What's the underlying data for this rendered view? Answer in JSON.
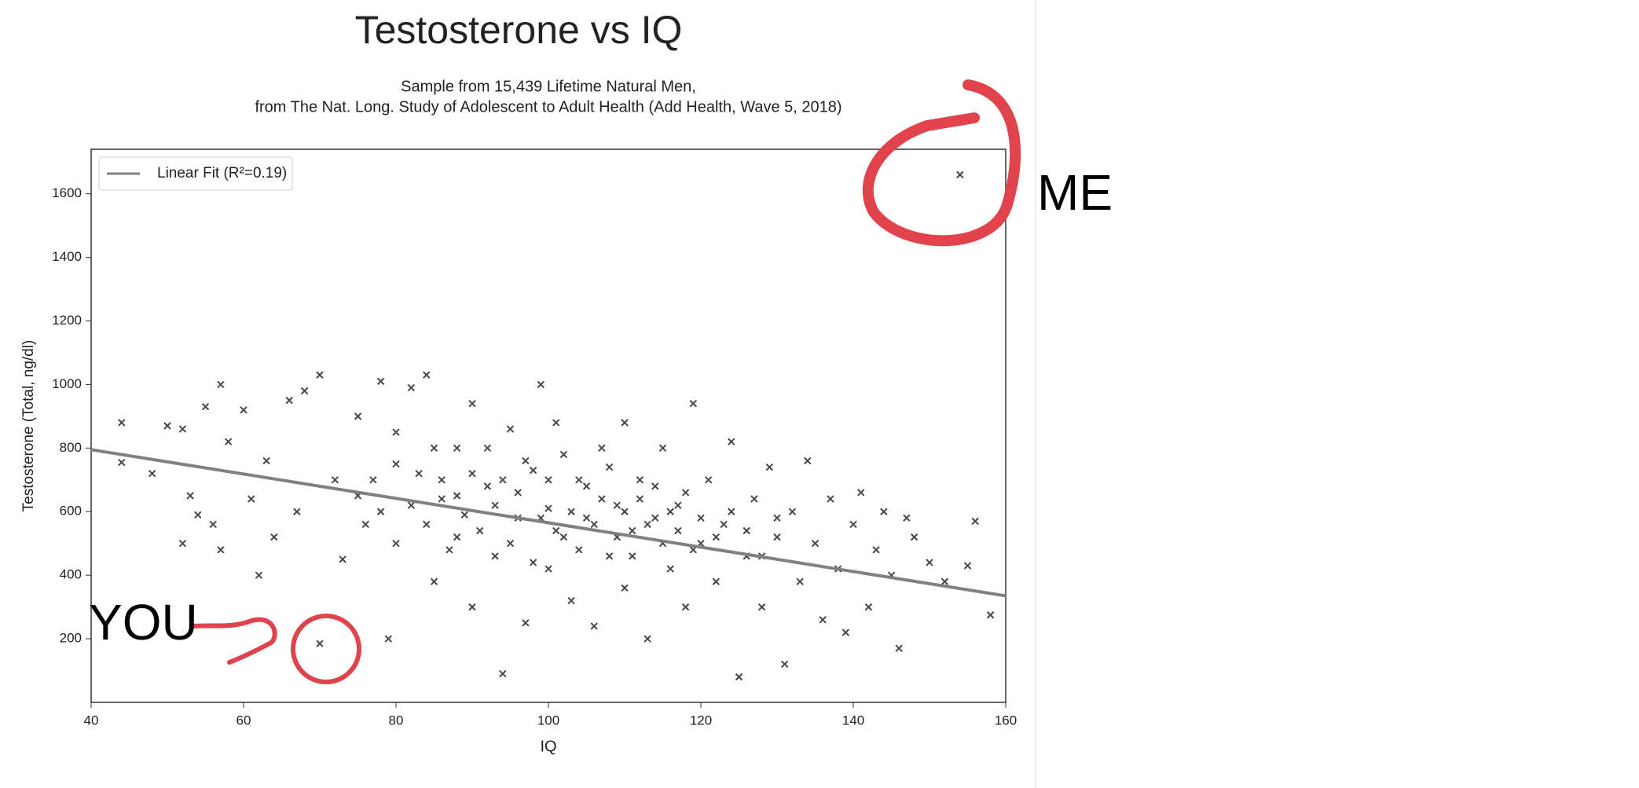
{
  "chart_data": {
    "type": "scatter",
    "title": "Testosterone vs IQ",
    "subtitle": [
      "Sample from 15,439 Lifetime Natural Men,",
      "from The Nat. Long. Study of Adolescent to Adult Health (Add Health, Wave 5, 2018)"
    ],
    "xlabel": "IQ",
    "ylabel": "Testosterone (Total, ng/dl)",
    "xlim": [
      40,
      160
    ],
    "ylim": [
      0,
      1740
    ],
    "xticks": [
      40,
      60,
      80,
      100,
      120,
      140,
      160
    ],
    "yticks": [
      200,
      400,
      600,
      800,
      1000,
      1200,
      1400,
      1600
    ],
    "marker_color": "#1a1a1a",
    "x": [
      44,
      44,
      48,
      50,
      52,
      52,
      53,
      54,
      55,
      56,
      57,
      57,
      58,
      60,
      61,
      62,
      63,
      64,
      66,
      67,
      68,
      70,
      70,
      72,
      73,
      75,
      76,
      78,
      79,
      80,
      82,
      83,
      84,
      85,
      86,
      88,
      88,
      90,
      90,
      92,
      93,
      94,
      95,
      96,
      97,
      98,
      99,
      100,
      100,
      101,
      102,
      103,
      104,
      105,
      106,
      107,
      108,
      109,
      110,
      110,
      111,
      112,
      113,
      114,
      115,
      116,
      117,
      118,
      119,
      120,
      121,
      122,
      123,
      124,
      125,
      126,
      127,
      128,
      129,
      130,
      131,
      132,
      133,
      134,
      135,
      136,
      137,
      138,
      139,
      140,
      141,
      142,
      143,
      144,
      145,
      146,
      147,
      148,
      150,
      152,
      154,
      155,
      156,
      158,
      75,
      77,
      78,
      80,
      80,
      82,
      84,
      85,
      86,
      87,
      88,
      89,
      90,
      91,
      92,
      93,
      94,
      95,
      96,
      97,
      98,
      99,
      100,
      101,
      102,
      103,
      104,
      105,
      106,
      107,
      108,
      109,
      110,
      111,
      112,
      113,
      114,
      115,
      116,
      117,
      118,
      119,
      120,
      122,
      124,
      126,
      128,
      130
    ],
    "values": [
      880,
      755,
      720,
      870,
      860,
      500,
      650,
      590,
      930,
      560,
      1000,
      480,
      820,
      920,
      640,
      400,
      760,
      520,
      950,
      600,
      980,
      1030,
      185,
      700,
      450,
      900,
      560,
      1010,
      200,
      850,
      990,
      720,
      1030,
      380,
      640,
      800,
      520,
      940,
      300,
      680,
      460,
      90,
      860,
      580,
      250,
      730,
      1000,
      610,
      420,
      880,
      520,
      320,
      700,
      580,
      240,
      800,
      460,
      620,
      880,
      360,
      540,
      700,
      200,
      580,
      800,
      420,
      620,
      300,
      940,
      500,
      700,
      380,
      560,
      820,
      80,
      460,
      640,
      300,
      740,
      520,
      120,
      600,
      380,
      760,
      500,
      260,
      640,
      420,
      220,
      560,
      660,
      300,
      480,
      600,
      400,
      170,
      580,
      520,
      440,
      380,
      1660,
      430,
      570,
      275,
      650,
      700,
      600,
      750,
      500,
      620,
      560,
      800,
      700,
      480,
      650,
      590,
      720,
      540,
      800,
      620,
      700,
      500,
      660,
      760,
      440,
      580,
      700,
      540,
      780,
      600,
      480,
      680,
      560,
      640,
      740,
      520,
      600,
      460,
      640,
      560,
      680,
      500,
      600,
      540,
      660,
      480,
      580,
      520,
      600,
      540,
      460,
      580
    ],
    "fit": {
      "name": "Linear Fit (R²=0.19)",
      "x": [
        40,
        160
      ],
      "values": [
        795,
        335
      ],
      "color": "#808080"
    },
    "legend": "upper left",
    "annotations": [
      {
        "text": "ME",
        "color": "#e0434b"
      },
      {
        "text": "YOU",
        "color": "#e0434b"
      }
    ]
  }
}
